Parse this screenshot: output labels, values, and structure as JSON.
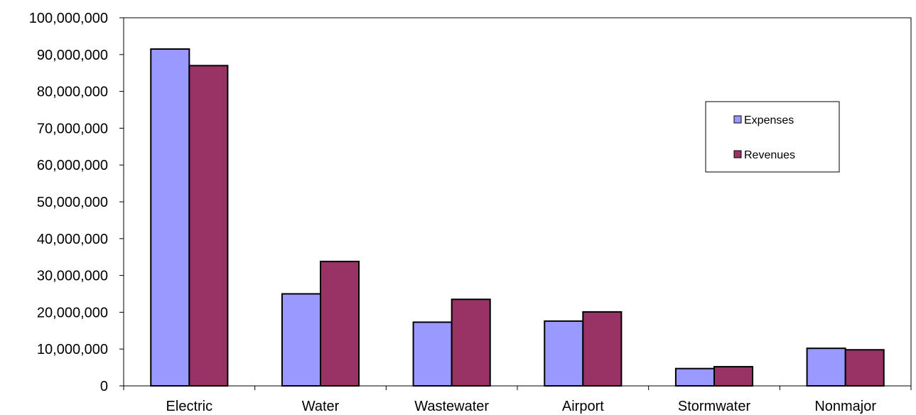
{
  "chart_data": {
    "type": "bar",
    "title": "",
    "xlabel": "",
    "ylabel": "",
    "categories": [
      "Electric",
      "Water",
      "Wastewater",
      "Airport",
      "Stormwater",
      "Nonmajor"
    ],
    "series": [
      {
        "name": "Expenses",
        "color": "#9999ff",
        "values": [
          91500000,
          25000000,
          17300000,
          17600000,
          4700000,
          10200000
        ]
      },
      {
        "name": "Revenues",
        "color": "#993366",
        "values": [
          87000000,
          33800000,
          23500000,
          20100000,
          5200000,
          9800000
        ]
      }
    ],
    "ylim": [
      0,
      100000000
    ],
    "yticks": [
      0,
      10000000,
      20000000,
      30000000,
      40000000,
      50000000,
      60000000,
      70000000,
      80000000,
      90000000,
      100000000
    ],
    "ytick_labels": [
      "0",
      "10,000,000",
      "20,000,000",
      "30,000,000",
      "40,000,000",
      "50,000,000",
      "60,000,000",
      "70,000,000",
      "80,000,000",
      "90,000,000",
      "100,000,000"
    ],
    "grid": false,
    "legend_position": "right"
  }
}
